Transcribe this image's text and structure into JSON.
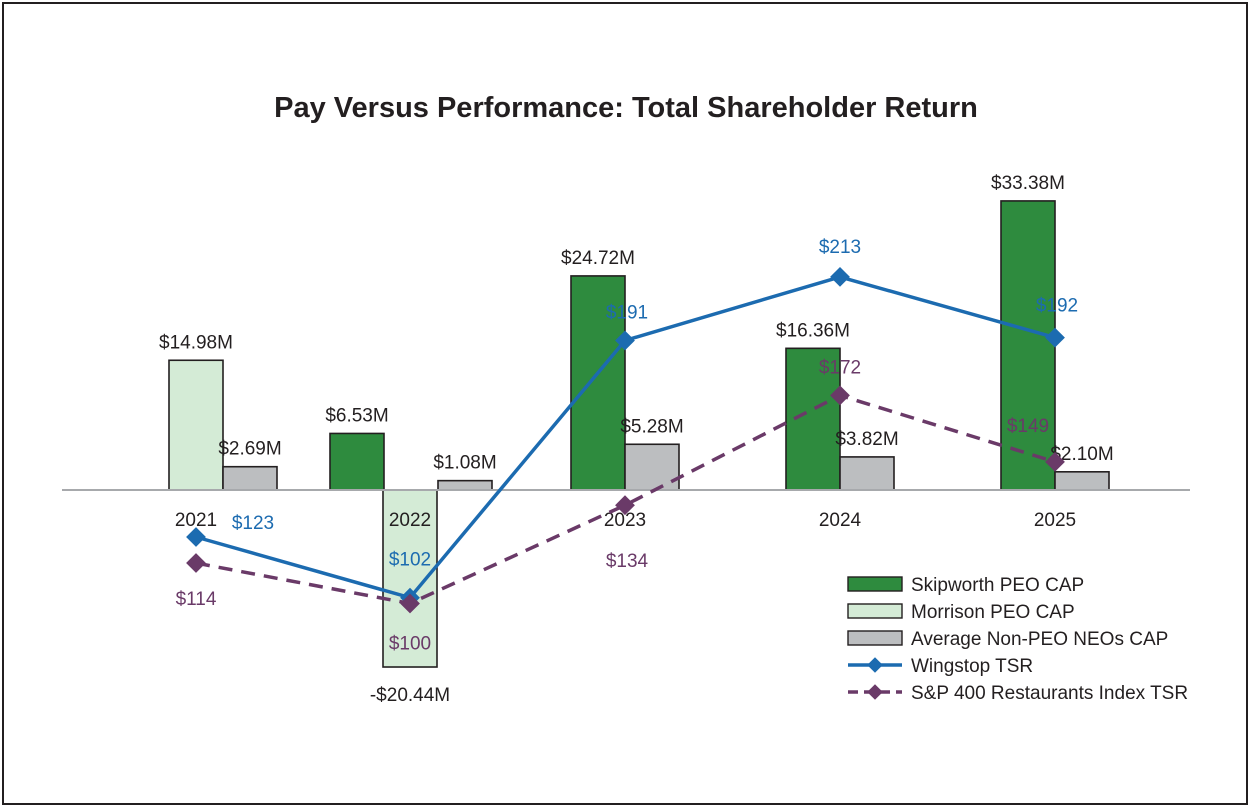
{
  "chart_data": {
    "type": "bar",
    "title": "Pay Versus Performance: Total Shareholder Return",
    "categories": [
      "2021",
      "2022",
      "2023",
      "2024",
      "2025"
    ],
    "bar_value_unit": "$M",
    "series": [
      {
        "name": "Skipworth PEO CAP",
        "kind": "bar",
        "color": "#2e8b3e",
        "values": [
          null,
          6.53,
          24.72,
          16.36,
          33.38
        ],
        "labels": [
          null,
          "$6.53M",
          "$24.72M",
          "$16.36M",
          "$33.38M"
        ]
      },
      {
        "name": "Morrison PEO CAP",
        "kind": "bar",
        "color": "#d4ebd6",
        "values": [
          14.98,
          -20.44,
          null,
          null,
          null
        ],
        "labels": [
          "$14.98M",
          "-$20.44M",
          null,
          null,
          null
        ]
      },
      {
        "name": "Average Non-PEO NEOs CAP",
        "kind": "bar",
        "color": "#bcbec0",
        "values": [
          2.69,
          1.08,
          5.28,
          3.82,
          2.1
        ],
        "labels": [
          "$2.69M",
          "$1.08M",
          "$5.28M",
          "$3.82M",
          "$2.10M"
        ]
      },
      {
        "name": "Wingstop TSR",
        "kind": "line",
        "color": "#1c6bb0",
        "dashed": false,
        "values": [
          123,
          102,
          191,
          213,
          192
        ],
        "labels": [
          "$123",
          "$102",
          "$191",
          "$213",
          "$192"
        ]
      },
      {
        "name": "S&P 400 Restaurants Index TSR",
        "kind": "line",
        "color": "#6a3a68",
        "dashed": true,
        "values": [
          114,
          100,
          134,
          172,
          149
        ],
        "labels": [
          "$114",
          "$100",
          "$134",
          "$172",
          "$149"
        ]
      }
    ],
    "bar_axis_range": [
      -20.44,
      33.38
    ],
    "tsr_axis_range": [
      100,
      213
    ],
    "grid": false,
    "legend_position": "bottom-right"
  }
}
